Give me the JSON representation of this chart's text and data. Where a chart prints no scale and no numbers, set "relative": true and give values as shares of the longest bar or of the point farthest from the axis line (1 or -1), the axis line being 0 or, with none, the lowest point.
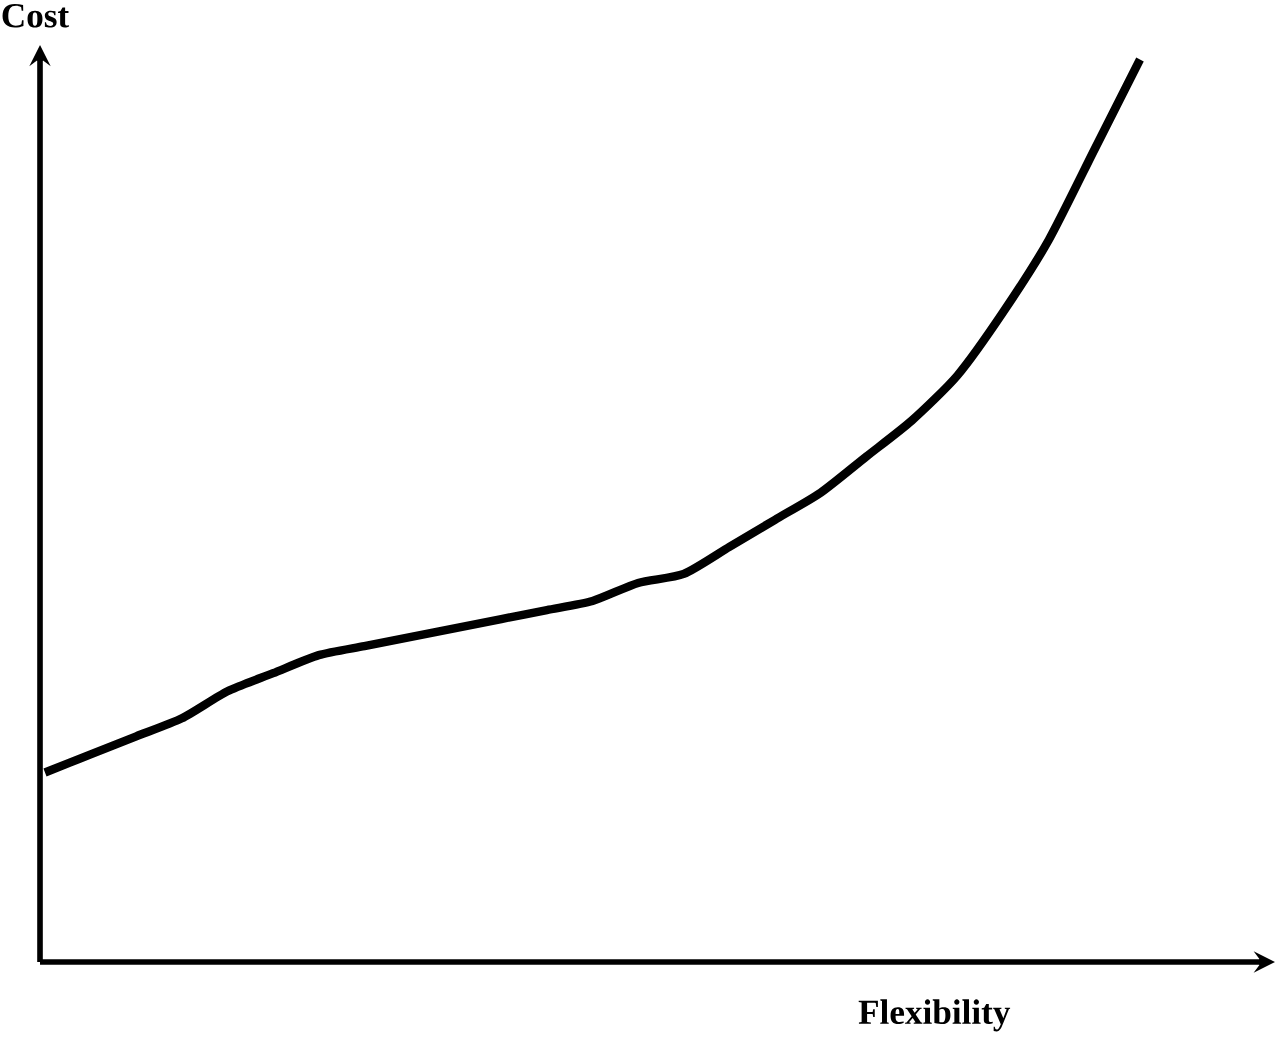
{
  "chart_data": {
    "type": "line",
    "relative": true,
    "xlabel": "Flexibility",
    "ylabel": "Cost",
    "color": "#000000",
    "categories": [
      null,
      null,
      null,
      null,
      null,
      null,
      null,
      null,
      null,
      null,
      null,
      null,
      null,
      null,
      null,
      null,
      null,
      null,
      null,
      null,
      null,
      null,
      null,
      null,
      null
    ],
    "values": [
      0.21,
      0.23,
      0.25,
      0.27,
      0.3,
      0.32,
      0.34,
      0.35,
      0.36,
      0.37,
      0.38,
      0.39,
      0.4,
      0.42,
      0.43,
      0.46,
      0.49,
      0.52,
      0.56,
      0.6,
      0.65,
      0.72,
      0.8,
      0.9,
      1
    ]
  }
}
